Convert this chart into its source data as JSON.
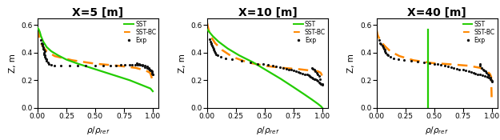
{
  "panels": [
    {
      "title": "X=5 [m]",
      "xlim": [
        0,
        1.05
      ],
      "ylim": [
        0,
        0.65
      ],
      "sst_x": [
        0.0,
        0.01,
        0.02,
        0.03,
        0.05,
        0.08,
        0.12,
        0.18,
        0.25,
        0.35,
        0.5,
        0.65,
        0.8,
        0.92,
        0.98,
        1.0
      ],
      "sst_y": [
        0.58,
        0.57,
        0.55,
        0.52,
        0.48,
        0.44,
        0.41,
        0.38,
        0.35,
        0.32,
        0.28,
        0.24,
        0.2,
        0.16,
        0.14,
        0.12
      ],
      "sstbc_x": [
        0.0,
        0.005,
        0.01,
        0.015,
        0.02,
        0.03,
        0.05,
        0.08,
        0.15,
        0.3,
        0.5,
        0.7,
        0.85,
        0.94,
        0.975,
        0.985,
        0.99,
        0.995,
        1.0
      ],
      "sstbc_y": [
        0.58,
        0.56,
        0.54,
        0.52,
        0.5,
        0.47,
        0.44,
        0.41,
        0.375,
        0.345,
        0.32,
        0.305,
        0.29,
        0.27,
        0.255,
        0.235,
        0.22,
        0.21,
        0.2
      ],
      "exp_x": [
        0.03,
        0.035,
        0.04,
        0.045,
        0.05,
        0.05,
        0.055,
        0.06,
        0.055,
        0.055,
        0.06,
        0.065,
        0.07,
        0.075,
        0.08,
        0.09,
        0.1,
        0.12,
        0.15,
        0.2,
        0.28,
        0.35,
        0.42,
        0.5,
        0.57,
        0.63,
        0.68,
        0.72,
        0.76,
        0.8,
        0.82,
        0.85,
        0.87,
        0.89,
        0.91,
        0.93,
        0.95,
        0.965,
        0.975,
        0.98,
        0.99,
        0.995,
        1.0,
        1.0,
        0.99,
        0.985,
        0.975,
        0.965,
        0.95,
        0.93,
        0.91,
        0.89,
        0.88,
        0.87,
        0.86
      ],
      "exp_y": [
        0.49,
        0.47,
        0.46,
        0.45,
        0.44,
        0.43,
        0.42,
        0.41,
        0.4,
        0.39,
        0.38,
        0.37,
        0.36,
        0.35,
        0.34,
        0.33,
        0.32,
        0.31,
        0.305,
        0.305,
        0.305,
        0.305,
        0.305,
        0.305,
        0.305,
        0.305,
        0.305,
        0.31,
        0.31,
        0.31,
        0.31,
        0.31,
        0.31,
        0.31,
        0.31,
        0.305,
        0.3,
        0.29,
        0.28,
        0.27,
        0.26,
        0.25,
        0.245,
        0.24,
        0.265,
        0.27,
        0.28,
        0.285,
        0.29,
        0.295,
        0.305,
        0.31,
        0.315,
        0.32,
        0.325
      ]
    },
    {
      "title": "X=10 [m]",
      "xlim": [
        0,
        1.05
      ],
      "ylim": [
        0,
        0.65
      ],
      "sst_x": [
        0.0,
        0.02,
        0.05,
        0.1,
        0.18,
        0.28,
        0.4,
        0.52,
        0.64,
        0.75,
        0.84,
        0.91,
        0.96,
        0.99,
        1.0
      ],
      "sst_y": [
        0.57,
        0.55,
        0.52,
        0.48,
        0.43,
        0.38,
        0.33,
        0.27,
        0.21,
        0.15,
        0.1,
        0.06,
        0.03,
        0.01,
        0.0
      ],
      "sstbc_x": [
        0.0,
        0.005,
        0.01,
        0.02,
        0.04,
        0.07,
        0.13,
        0.22,
        0.35,
        0.5,
        0.65,
        0.8,
        0.9,
        0.96,
        0.985,
        0.995,
        1.0
      ],
      "sstbc_y": [
        0.62,
        0.6,
        0.58,
        0.55,
        0.51,
        0.47,
        0.42,
        0.37,
        0.33,
        0.305,
        0.29,
        0.28,
        0.27,
        0.265,
        0.255,
        0.24,
        0.22
      ],
      "exp_x": [
        0.025,
        0.03,
        0.04,
        0.04,
        0.045,
        0.05,
        0.055,
        0.06,
        0.065,
        0.07,
        0.08,
        0.09,
        0.12,
        0.16,
        0.22,
        0.3,
        0.38,
        0.44,
        0.49,
        0.53,
        0.57,
        0.6,
        0.63,
        0.66,
        0.69,
        0.71,
        0.73,
        0.75,
        0.77,
        0.79,
        0.81,
        0.83,
        0.85,
        0.87,
        0.88,
        0.89,
        0.9,
        0.91,
        0.92,
        0.93,
        0.94,
        0.95,
        0.96,
        0.97,
        0.98,
        0.99,
        1.0,
        1.0,
        0.98,
        0.97,
        0.96,
        0.95,
        0.94,
        0.93,
        0.92,
        0.91
      ],
      "exp_y": [
        0.5,
        0.48,
        0.47,
        0.46,
        0.45,
        0.44,
        0.43,
        0.42,
        0.41,
        0.4,
        0.39,
        0.38,
        0.37,
        0.36,
        0.35,
        0.34,
        0.33,
        0.32,
        0.315,
        0.31,
        0.305,
        0.3,
        0.295,
        0.29,
        0.285,
        0.28,
        0.275,
        0.27,
        0.265,
        0.26,
        0.255,
        0.25,
        0.245,
        0.24,
        0.235,
        0.23,
        0.225,
        0.22,
        0.215,
        0.21,
        0.205,
        0.2,
        0.195,
        0.185,
        0.18,
        0.175,
        0.17,
        0.165,
        0.21,
        0.23,
        0.245,
        0.255,
        0.265,
        0.275,
        0.285,
        0.29
      ]
    },
    {
      "title": "X=40 [m]",
      "xlim": [
        0,
        1.05
      ],
      "ylim": [
        0,
        0.65
      ],
      "sst_x": [
        0.45,
        0.45,
        0.45,
        0.45,
        0.45,
        0.45,
        0.45,
        0.45,
        0.45,
        0.45,
        0.45,
        0.45,
        0.45
      ],
      "sst_y": [
        0.57,
        0.53,
        0.49,
        0.45,
        0.41,
        0.37,
        0.33,
        0.29,
        0.25,
        0.21,
        0.17,
        0.1,
        0.0
      ],
      "sstbc_x": [
        0.0,
        0.005,
        0.01,
        0.02,
        0.04,
        0.07,
        0.12,
        0.2,
        0.32,
        0.48,
        0.65,
        0.8,
        0.9,
        0.96,
        0.985,
        0.995,
        1.0
      ],
      "sstbc_y": [
        0.57,
        0.55,
        0.53,
        0.51,
        0.48,
        0.45,
        0.41,
        0.375,
        0.345,
        0.325,
        0.315,
        0.305,
        0.29,
        0.265,
        0.245,
        0.225,
        0.05
      ],
      "exp_x": [
        0.025,
        0.03,
        0.04,
        0.05,
        0.06,
        0.065,
        0.07,
        0.075,
        0.08,
        0.09,
        0.1,
        0.12,
        0.15,
        0.19,
        0.24,
        0.3,
        0.36,
        0.41,
        0.46,
        0.5,
        0.53,
        0.56,
        0.59,
        0.62,
        0.65,
        0.67,
        0.7,
        0.72,
        0.75,
        0.77,
        0.8,
        0.82,
        0.84,
        0.86,
        0.88,
        0.9,
        0.92,
        0.94,
        0.96,
        0.975,
        0.985,
        0.995,
        1.0,
        1.0,
        0.985,
        0.975,
        0.965,
        0.955,
        0.945,
        0.935,
        0.925,
        0.91,
        0.9,
        0.895
      ],
      "exp_y": [
        0.49,
        0.47,
        0.46,
        0.45,
        0.44,
        0.43,
        0.42,
        0.41,
        0.4,
        0.39,
        0.38,
        0.37,
        0.36,
        0.35,
        0.345,
        0.34,
        0.335,
        0.33,
        0.325,
        0.32,
        0.315,
        0.31,
        0.305,
        0.3,
        0.295,
        0.29,
        0.285,
        0.28,
        0.275,
        0.27,
        0.265,
        0.26,
        0.255,
        0.25,
        0.245,
        0.24,
        0.235,
        0.23,
        0.225,
        0.22,
        0.21,
        0.2,
        0.195,
        0.19,
        0.22,
        0.235,
        0.245,
        0.255,
        0.265,
        0.27,
        0.28,
        0.29,
        0.305,
        0.315
      ]
    }
  ],
  "sst_color": "#22cc00",
  "sstbc_color": "#ff8800",
  "exp_color": "#111111",
  "title_fontsize": 10,
  "label_fontsize": 7.5,
  "tick_fontsize": 6.5
}
